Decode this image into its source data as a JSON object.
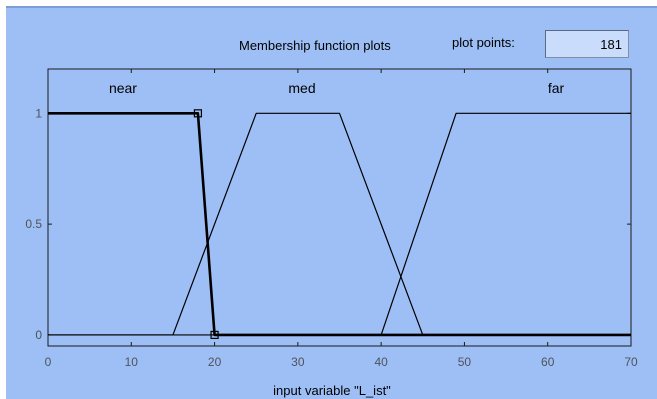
{
  "header": {
    "title": "Membership function plots",
    "plot_points_label": "plot points:",
    "plot_points_value": "181"
  },
  "colors": {
    "panel_background": "#9dbff5",
    "plot_background": "#9dbff5",
    "curve": "#000000",
    "axis_text": "#4f5358"
  },
  "chart_data": {
    "type": "line",
    "title": "",
    "xlabel": "input variable \"L_ist\"",
    "ylabel": "",
    "xlim": [
      0,
      70
    ],
    "ylim": [
      -0.05,
      1.2
    ],
    "x_ticks": [
      "0",
      "10",
      "20",
      "30",
      "40",
      "50",
      "60",
      "70"
    ],
    "y_ticks": [
      "0",
      "0.5",
      "1"
    ],
    "series": [
      {
        "name": "near",
        "selected": true,
        "x": [
          0,
          18,
          20,
          70
        ],
        "y": [
          1,
          1,
          0,
          0
        ],
        "handles": [
          [
            18,
            1
          ],
          [
            20,
            0
          ]
        ]
      },
      {
        "name": "med",
        "selected": false,
        "x": [
          0,
          15,
          25,
          35,
          45,
          70
        ],
        "y": [
          0,
          0,
          1,
          1,
          0,
          0
        ]
      },
      {
        "name": "far",
        "selected": false,
        "x": [
          0,
          40,
          49,
          70
        ],
        "y": [
          0,
          0,
          1,
          1
        ]
      }
    ],
    "labels": [
      {
        "text": "near",
        "x": 9
      },
      {
        "text": "med",
        "x": 30.5
      },
      {
        "text": "far",
        "x": 61
      }
    ]
  }
}
